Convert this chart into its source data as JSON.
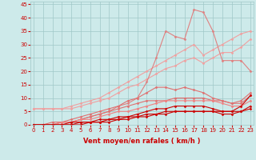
{
  "x": [
    0,
    1,
    2,
    3,
    4,
    5,
    6,
    7,
    8,
    9,
    10,
    11,
    12,
    13,
    14,
    15,
    16,
    17,
    18,
    19,
    20,
    21,
    22,
    23
  ],
  "series": [
    {
      "label": "line_lightpink_upper1",
      "color": "#f0a0a0",
      "lw": 0.8,
      "marker": "D",
      "markersize": 1.5,
      "y": [
        6,
        6,
        6,
        6,
        7,
        8,
        9,
        10,
        12,
        14,
        16,
        18,
        20,
        22,
        24,
        26,
        28,
        30,
        26,
        28,
        30,
        32,
        34,
        35
      ]
    },
    {
      "label": "line_lightpink_upper2",
      "color": "#f0a0a0",
      "lw": 0.8,
      "marker": "D",
      "markersize": 1.5,
      "y": [
        6,
        6,
        6,
        6,
        6,
        7,
        8,
        9,
        10,
        12,
        14,
        15,
        17,
        19,
        21,
        22,
        24,
        25,
        23,
        25,
        27,
        27,
        29,
        32
      ]
    },
    {
      "label": "line_pink_spiky",
      "color": "#e08080",
      "lw": 0.8,
      "marker": "D",
      "markersize": 1.5,
      "y": [
        0,
        0,
        0,
        1,
        1,
        2,
        3,
        4,
        5,
        7,
        8,
        10,
        16,
        25,
        35,
        33,
        32,
        43,
        42,
        35,
        24,
        24,
        24,
        20
      ]
    },
    {
      "label": "line_med_pink1",
      "color": "#e07070",
      "lw": 0.8,
      "marker": "D",
      "markersize": 1.5,
      "y": [
        0,
        0,
        1,
        1,
        2,
        3,
        4,
        5,
        6,
        7,
        9,
        10,
        12,
        14,
        14,
        13,
        14,
        13,
        12,
        10,
        9,
        8,
        9,
        12
      ]
    },
    {
      "label": "line_med_pink2",
      "color": "#e07070",
      "lw": 0.8,
      "marker": "D",
      "markersize": 1.5,
      "y": [
        0,
        0,
        0,
        1,
        1,
        2,
        3,
        4,
        5,
        6,
        7,
        8,
        9,
        9,
        9,
        10,
        10,
        10,
        10,
        9,
        9,
        8,
        8,
        11
      ]
    },
    {
      "label": "line_salmon1",
      "color": "#f08080",
      "lw": 0.8,
      "marker": "D",
      "markersize": 1.5,
      "y": [
        0,
        0,
        0,
        1,
        1,
        2,
        2,
        3,
        4,
        5,
        5,
        6,
        7,
        8,
        9,
        9,
        9,
        9,
        9,
        9,
        8,
        7,
        7,
        9
      ]
    },
    {
      "label": "line_dark_red1",
      "color": "#cc0000",
      "lw": 0.8,
      "marker": "D",
      "markersize": 1.5,
      "y": [
        0,
        0,
        0,
        0,
        1,
        1,
        1,
        2,
        2,
        3,
        3,
        4,
        5,
        6,
        6,
        7,
        7,
        7,
        7,
        6,
        5,
        5,
        7,
        11
      ]
    },
    {
      "label": "line_dark_red2",
      "color": "#cc0000",
      "lw": 0.8,
      "marker": "D",
      "markersize": 1.5,
      "y": [
        0,
        0,
        0,
        0,
        0,
        1,
        1,
        1,
        2,
        2,
        3,
        3,
        4,
        4,
        5,
        5,
        5,
        5,
        5,
        5,
        5,
        5,
        5,
        7
      ]
    },
    {
      "label": "line_dark_red3",
      "color": "#cc0000",
      "lw": 0.8,
      "marker": "D",
      "markersize": 1.5,
      "y": [
        0,
        0,
        0,
        0,
        0,
        0,
        1,
        1,
        1,
        2,
        2,
        3,
        3,
        4,
        4,
        5,
        5,
        5,
        5,
        5,
        4,
        4,
        5,
        6
      ]
    }
  ],
  "xlim": [
    -0.3,
    23.3
  ],
  "ylim": [
    0,
    46
  ],
  "yticks": [
    0,
    5,
    10,
    15,
    20,
    25,
    30,
    35,
    40,
    45
  ],
  "xticks": [
    0,
    1,
    2,
    3,
    4,
    5,
    6,
    7,
    8,
    9,
    10,
    11,
    12,
    13,
    14,
    15,
    16,
    17,
    18,
    19,
    20,
    21,
    22,
    23
  ],
  "xlabel": "Vent moyen/en rafales ( km/h )",
  "bg_color": "#cdeaea",
  "grid_color": "#a0c8c8",
  "xlabel_color": "#cc0000",
  "tick_color": "#cc0000"
}
